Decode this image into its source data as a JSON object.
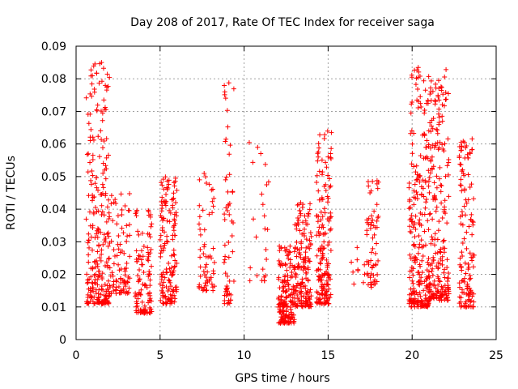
{
  "chart_data": {
    "type": "scatter",
    "title": "Day 208 of 2017, Rate Of TEC Index for receiver saga",
    "xlabel": "GPS time / hours",
    "ylabel": "ROTI / TECUs",
    "xlim": [
      0,
      25
    ],
    "ylim": [
      0,
      0.09
    ],
    "x_ticks": [
      "0",
      "5",
      "10",
      "15",
      "20",
      "25"
    ],
    "y_ticks": [
      "0",
      "0.01",
      "0.02",
      "0.03",
      "0.04",
      "0.05",
      "0.06",
      "0.07",
      "0.08",
      "0.09"
    ],
    "grid": true,
    "marker": "+",
    "color": "#ff0000",
    "clusters": [
      {
        "x": [
          0.6,
          2.0
        ],
        "y": [
          0.011,
          0.085
        ],
        "n": 260
      },
      {
        "x": [
          2.0,
          3.2
        ],
        "y": [
          0.014,
          0.045
        ],
        "n": 90
      },
      {
        "x": [
          3.5,
          4.5
        ],
        "y": [
          0.008,
          0.04
        ],
        "n": 110
      },
      {
        "x": [
          5.0,
          6.0
        ],
        "y": [
          0.011,
          0.05
        ],
        "n": 150
      },
      {
        "x": [
          7.3,
          8.3
        ],
        "y": [
          0.015,
          0.051
        ],
        "n": 60
      },
      {
        "x": [
          8.8,
          9.4
        ],
        "y": [
          0.011,
          0.08
        ],
        "n": 60
      },
      {
        "x": [
          10.2,
          11.5
        ],
        "y": [
          0.018,
          0.062
        ],
        "n": 25
      },
      {
        "x": [
          12.0,
          13.0
        ],
        "y": [
          0.005,
          0.03
        ],
        "n": 170
      },
      {
        "x": [
          13.0,
          14.0
        ],
        "y": [
          0.01,
          0.042
        ],
        "n": 160
      },
      {
        "x": [
          14.3,
          15.2
        ],
        "y": [
          0.011,
          0.064
        ],
        "n": 170
      },
      {
        "x": [
          16.3,
          17.2
        ],
        "y": [
          0.017,
          0.032
        ],
        "n": 10
      },
      {
        "x": [
          17.3,
          18.0
        ],
        "y": [
          0.016,
          0.05
        ],
        "n": 60
      },
      {
        "x": [
          19.8,
          21.0
        ],
        "y": [
          0.01,
          0.085
        ],
        "n": 240
      },
      {
        "x": [
          21.0,
          22.2
        ],
        "y": [
          0.012,
          0.084
        ],
        "n": 220
      },
      {
        "x": [
          22.8,
          23.7
        ],
        "y": [
          0.01,
          0.062
        ],
        "n": 130
      }
    ]
  }
}
